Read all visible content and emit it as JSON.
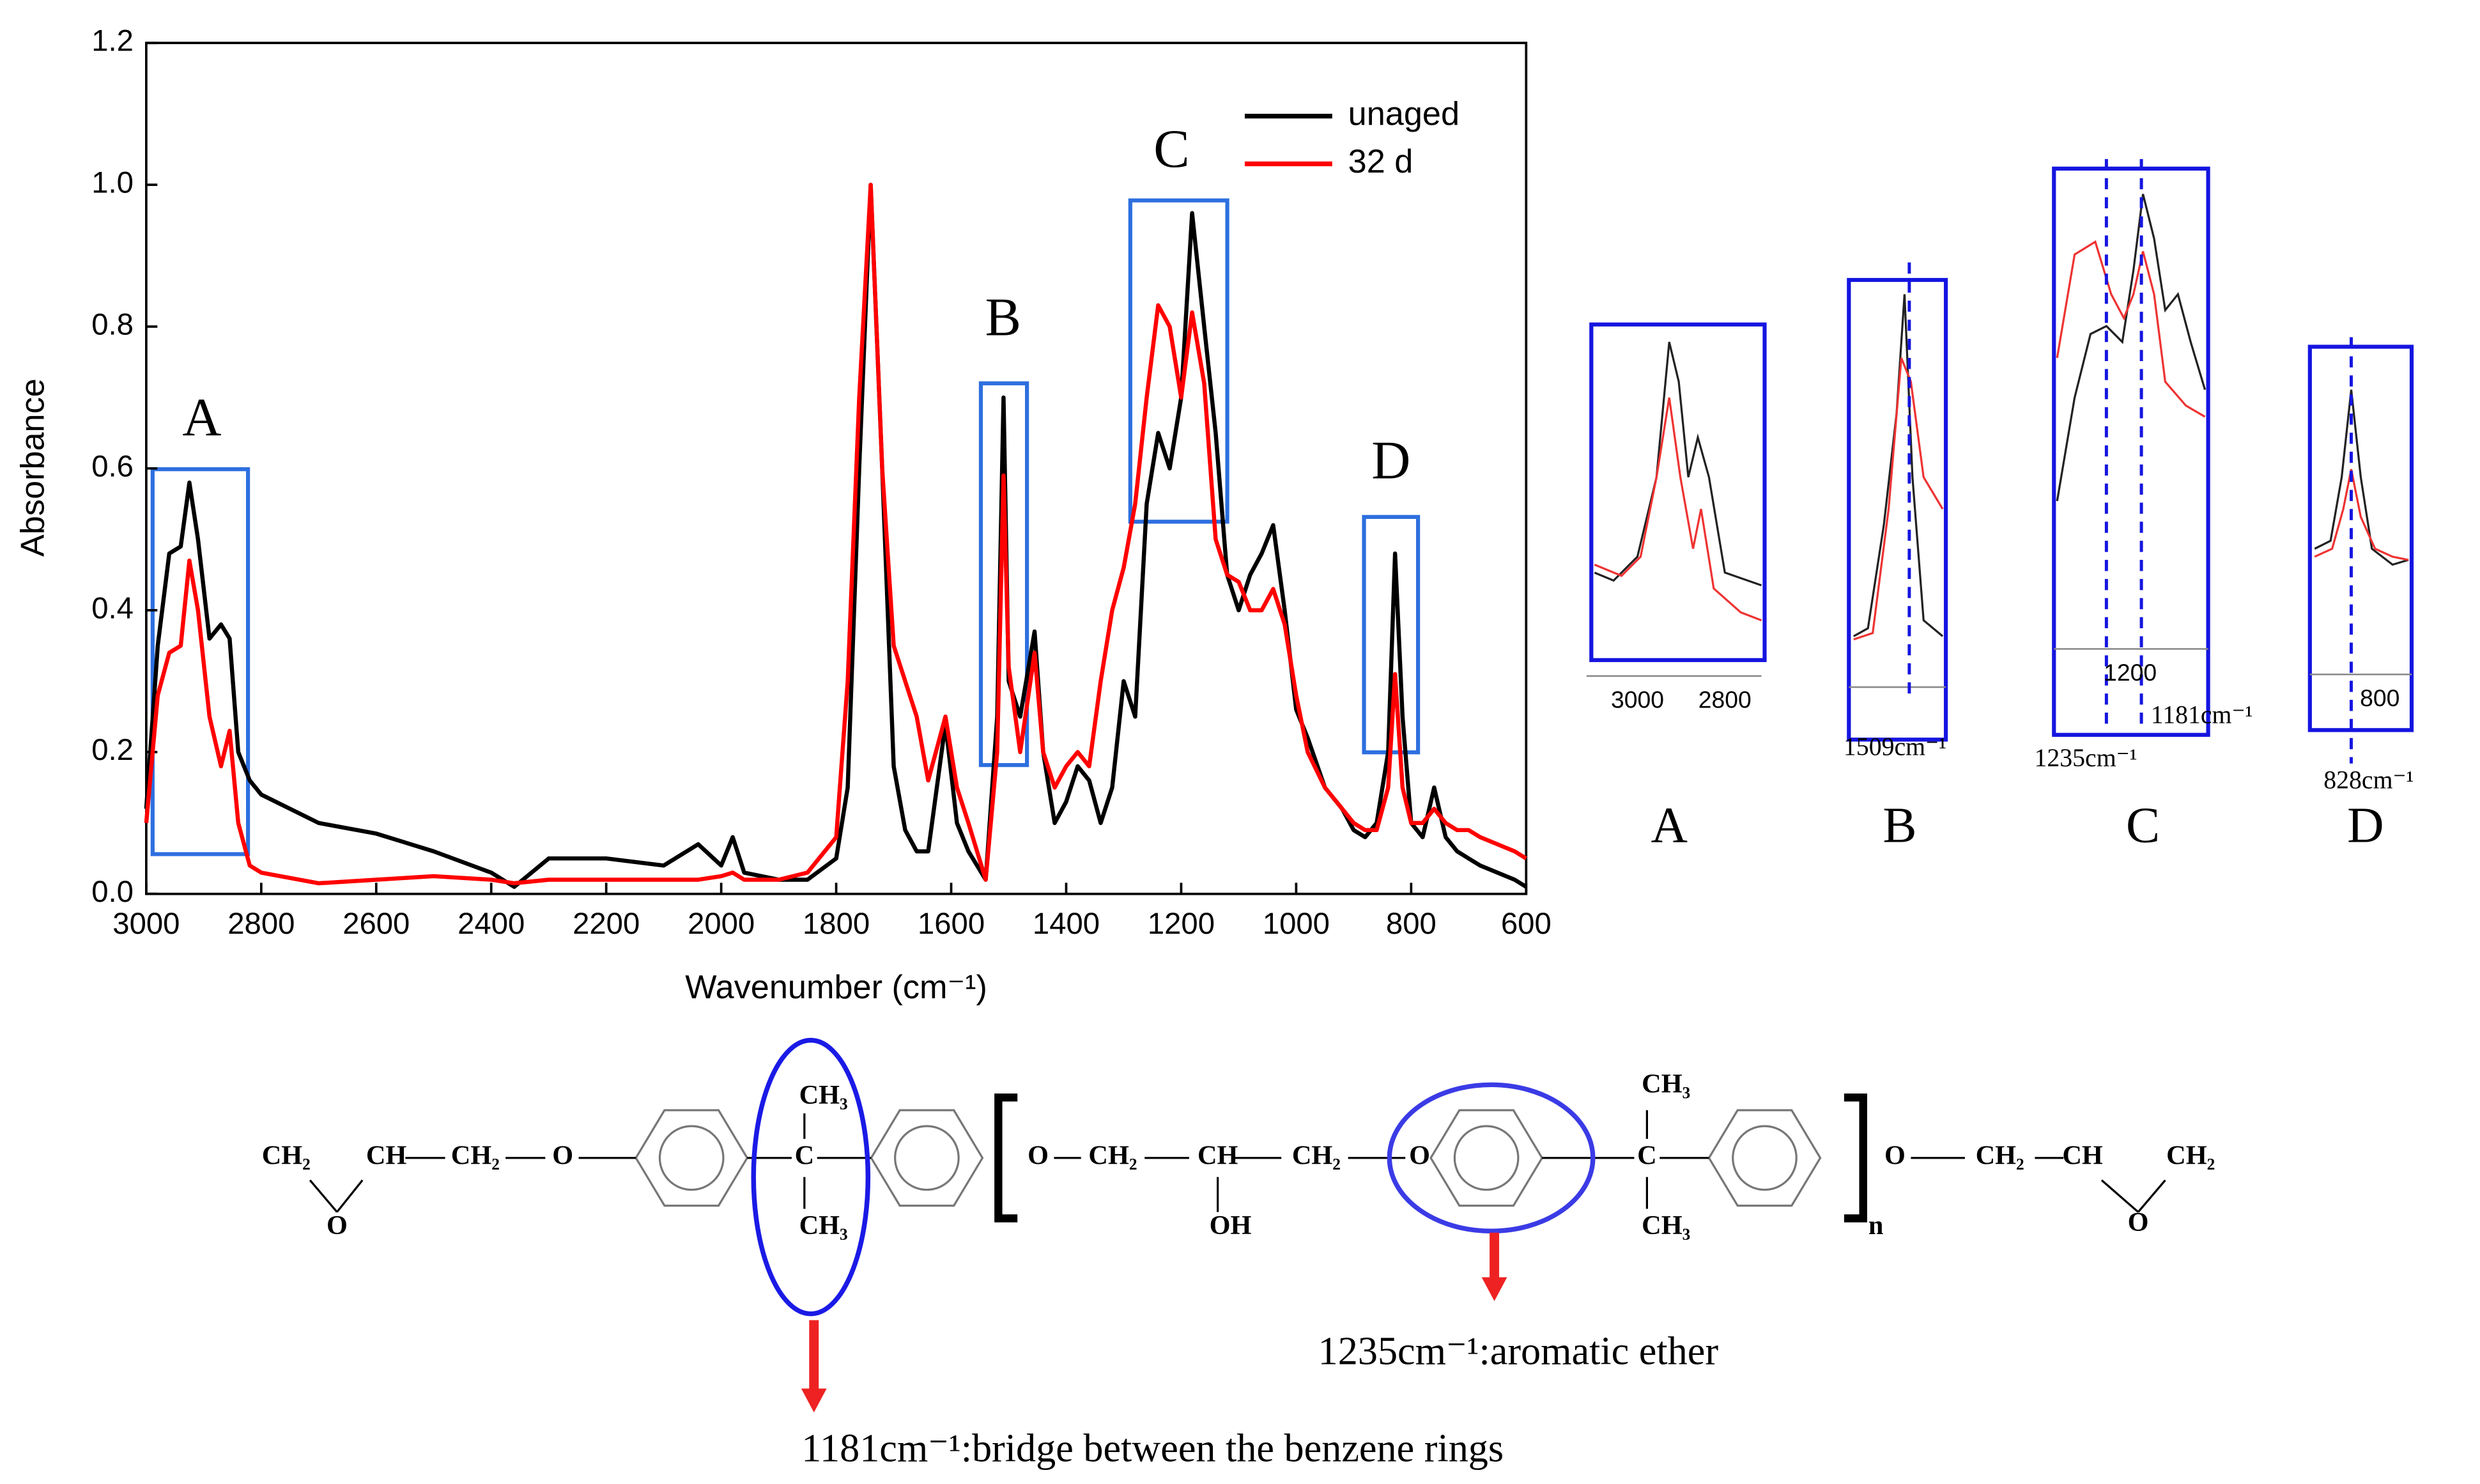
{
  "chart_data": {
    "type": "line",
    "xlabel": "Wavenumber (cm⁻¹)",
    "ylabel": "Absorbance",
    "xlim": [
      3000,
      600
    ],
    "ylim": [
      0,
      1.2
    ],
    "xticks": [
      3000,
      2800,
      2600,
      2400,
      2200,
      2000,
      1800,
      1600,
      1400,
      1200,
      1000,
      800,
      600
    ],
    "yticks": [
      {
        "value": 0,
        "label": "0.0"
      },
      0.2,
      0.4,
      0.6,
      0.8,
      {
        "value": 1,
        "label": "1.0"
      },
      1.2
    ],
    "legend": "upper right",
    "x": [
      3000,
      2980,
      2960,
      2940,
      2925,
      2910,
      2890,
      2870,
      2855,
      2840,
      2820,
      2800,
      2700,
      2600,
      2500,
      2400,
      2360,
      2300,
      2200,
      2100,
      2040,
      2000,
      1980,
      1960,
      1900,
      1850,
      1800,
      1780,
      1760,
      1740,
      1720,
      1700,
      1680,
      1660,
      1640,
      1610,
      1590,
      1570,
      1540,
      1520,
      1509,
      1500,
      1480,
      1455,
      1440,
      1420,
      1400,
      1380,
      1360,
      1340,
      1320,
      1300,
      1280,
      1260,
      1240,
      1220,
      1200,
      1181,
      1160,
      1140,
      1120,
      1100,
      1080,
      1060,
      1040,
      1020,
      1000,
      980,
      950,
      920,
      900,
      880,
      860,
      840,
      828,
      815,
      800,
      780,
      760,
      740,
      720,
      700,
      680,
      650,
      620,
      600
    ],
    "series": [
      {
        "name": "unaged",
        "color": "#000000",
        "values": [
          0.12,
          0.35,
          0.48,
          0.49,
          0.58,
          0.5,
          0.36,
          0.38,
          0.36,
          0.2,
          0.16,
          0.14,
          0.1,
          0.085,
          0.06,
          0.03,
          0.01,
          0.05,
          0.05,
          0.04,
          0.07,
          0.04,
          0.08,
          0.03,
          0.02,
          0.02,
          0.05,
          0.15,
          0.6,
          1.0,
          0.6,
          0.18,
          0.09,
          0.06,
          0.06,
          0.24,
          0.1,
          0.06,
          0.02,
          0.25,
          0.7,
          0.3,
          0.25,
          0.37,
          0.2,
          0.1,
          0.13,
          0.18,
          0.16,
          0.1,
          0.15,
          0.3,
          0.25,
          0.55,
          0.65,
          0.6,
          0.7,
          0.96,
          0.8,
          0.65,
          0.45,
          0.4,
          0.45,
          0.48,
          0.52,
          0.4,
          0.26,
          0.22,
          0.15,
          0.12,
          0.09,
          0.08,
          0.1,
          0.2,
          0.48,
          0.25,
          0.1,
          0.08,
          0.15,
          0.08,
          0.06,
          0.05,
          0.04,
          0.03,
          0.02,
          0.01
        ]
      },
      {
        "name": "32 d",
        "color": "#ff0000",
        "values": [
          0.1,
          0.28,
          0.34,
          0.35,
          0.47,
          0.4,
          0.25,
          0.18,
          0.23,
          0.1,
          0.04,
          0.03,
          0.015,
          0.02,
          0.025,
          0.02,
          0.015,
          0.02,
          0.02,
          0.02,
          0.02,
          0.025,
          0.03,
          0.02,
          0.02,
          0.03,
          0.08,
          0.3,
          0.7,
          1.0,
          0.6,
          0.35,
          0.3,
          0.25,
          0.16,
          0.25,
          0.15,
          0.1,
          0.02,
          0.2,
          0.59,
          0.32,
          0.2,
          0.34,
          0.2,
          0.15,
          0.18,
          0.2,
          0.18,
          0.3,
          0.4,
          0.46,
          0.55,
          0.7,
          0.83,
          0.8,
          0.7,
          0.82,
          0.72,
          0.5,
          0.45,
          0.44,
          0.4,
          0.4,
          0.43,
          0.38,
          0.28,
          0.2,
          0.15,
          0.12,
          0.1,
          0.09,
          0.09,
          0.15,
          0.31,
          0.15,
          0.1,
          0.1,
          0.12,
          0.1,
          0.09,
          0.09,
          0.08,
          0.07,
          0.06,
          0.05
        ]
      }
    ],
    "regions": [
      "A",
      "B",
      "C",
      "D"
    ],
    "insets": {
      "ticks": [
        "3000",
        "2800",
        "1200",
        "800"
      ],
      "markers": [
        "1509cm⁻¹",
        "1235cm⁻¹",
        "1181cm⁻¹",
        "828cm⁻¹"
      ]
    }
  },
  "structure": {
    "labels": [
      "CH₂",
      "CH",
      "CH₂",
      "O",
      "CH₃",
      "C",
      "CH₃",
      "O",
      "CH₂",
      "CH",
      "OH",
      "CH₂",
      "O",
      "CH₃",
      "C",
      "CH₃",
      "n",
      "O",
      "CH₂",
      "CH",
      "CH₂",
      "O",
      "O"
    ],
    "annotations": [
      "1235cm⁻¹:aromatic ether",
      "1181cm⁻¹:bridge between the benzene rings"
    ]
  }
}
